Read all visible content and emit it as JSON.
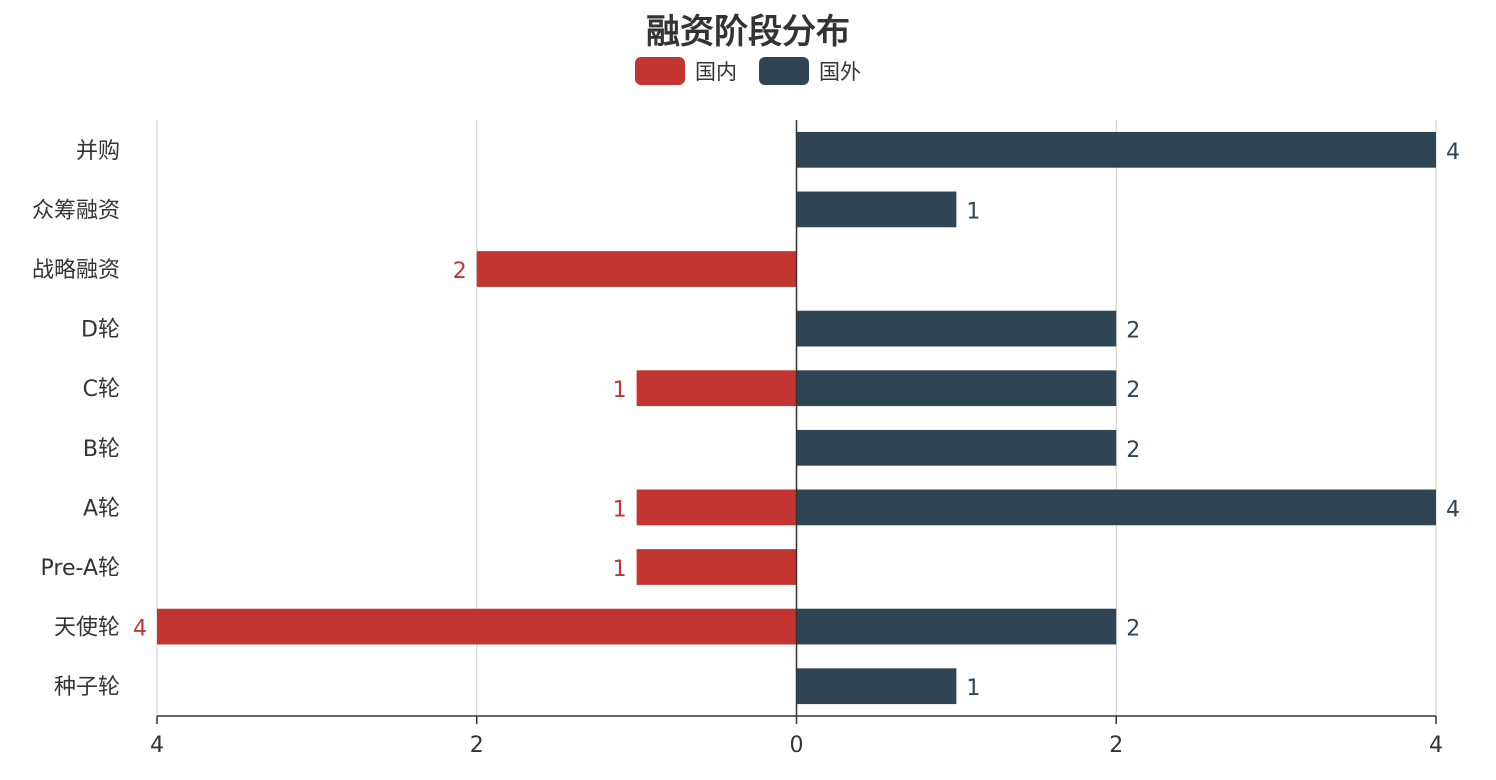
{
  "chart_data": {
    "type": "bar",
    "orientation": "horizontal-diverging",
    "title": "融资阶段分布",
    "categories": [
      "并购",
      "众筹融资",
      "战略融资",
      "D轮",
      "C轮",
      "B轮",
      "A轮",
      "Pre-A轮",
      "天使轮",
      "种子轮"
    ],
    "series": [
      {
        "name": "国内",
        "color": "#c23531",
        "values": [
          0,
          0,
          2,
          0,
          1,
          0,
          1,
          1,
          4,
          0
        ]
      },
      {
        "name": "国外",
        "color": "#2f4554",
        "values": [
          4,
          1,
          0,
          2,
          2,
          2,
          4,
          0,
          2,
          1
        ]
      }
    ],
    "xlim": [
      -4,
      4
    ],
    "xticks": [
      -4,
      -2,
      0,
      2,
      4
    ],
    "xtick_labels": [
      "4",
      "2",
      "0",
      "2",
      "4"
    ],
    "grid": true,
    "legend_position": "top-center"
  }
}
